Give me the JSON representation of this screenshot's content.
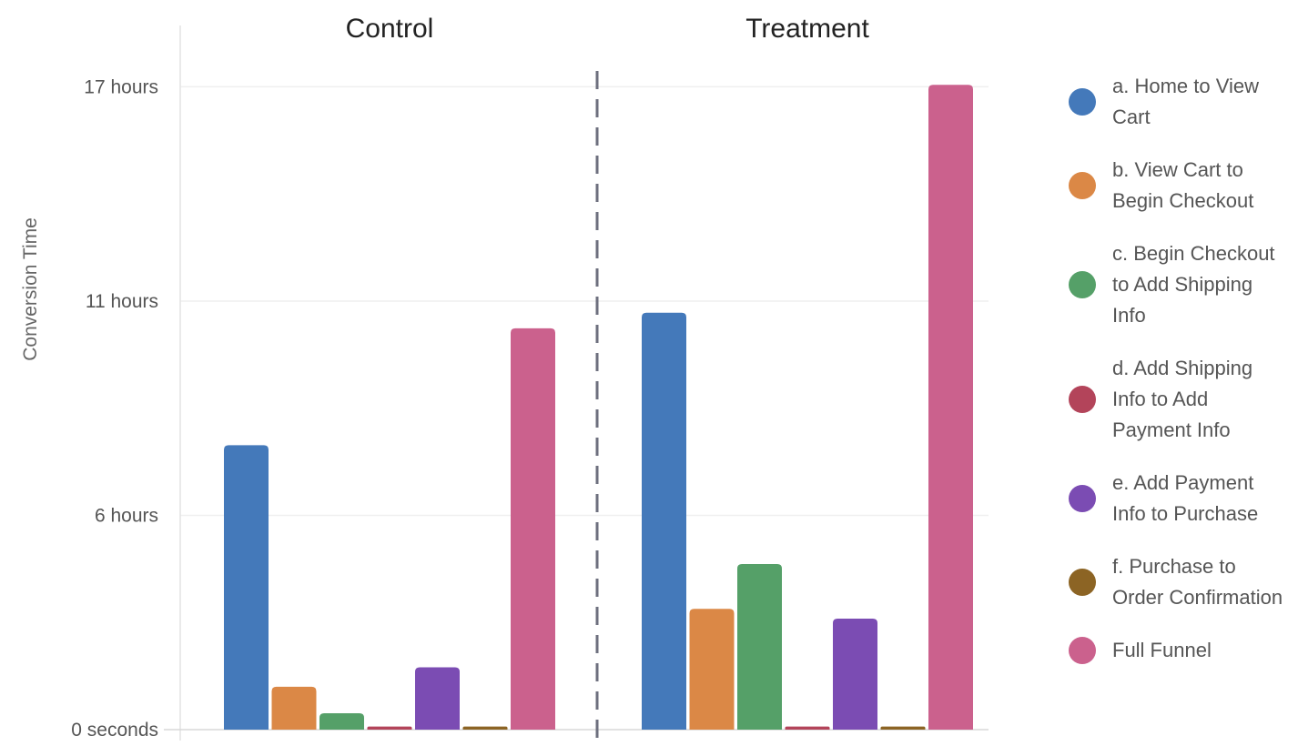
{
  "chart_data": {
    "type": "bar",
    "ylabel": "Conversion Time",
    "y_unit": "hours",
    "ylim": [
      0,
      17
    ],
    "y_ticks": [
      {
        "value": 0,
        "label": "0 seconds"
      },
      {
        "value": 5.5,
        "label": "6 hours"
      },
      {
        "value": 11,
        "label": "11 hours"
      },
      {
        "value": 16.5,
        "label": "17 hours"
      }
    ],
    "grid": true,
    "legend_position": "right",
    "groups": [
      "Control",
      "Treatment"
    ],
    "series": [
      {
        "name": "a. Home to View Cart",
        "color": "#4479BA",
        "values": [
          7.3,
          10.7
        ]
      },
      {
        "name": "b. View Cart to Begin Checkout",
        "color": "#DB8846",
        "values": [
          1.1,
          3.1
        ]
      },
      {
        "name": "c. Begin Checkout to Add Shipping Info",
        "color": "#55A068",
        "values": [
          0.42,
          4.25
        ]
      },
      {
        "name": "d. Add Shipping Info to Add Payment Info",
        "color": "#B3445A",
        "values": [
          0.08,
          0.08
        ]
      },
      {
        "name": "e. Add Payment Info to Purchase",
        "color": "#7B4CB3",
        "values": [
          1.6,
          2.85
        ]
      },
      {
        "name": "f. Purchase to Order Confirmation",
        "color": "#8C6424",
        "values": [
          0.08,
          0.08
        ]
      },
      {
        "name": "Full Funnel",
        "color": "#CB618D",
        "values": [
          10.3,
          16.55
        ]
      }
    ]
  }
}
